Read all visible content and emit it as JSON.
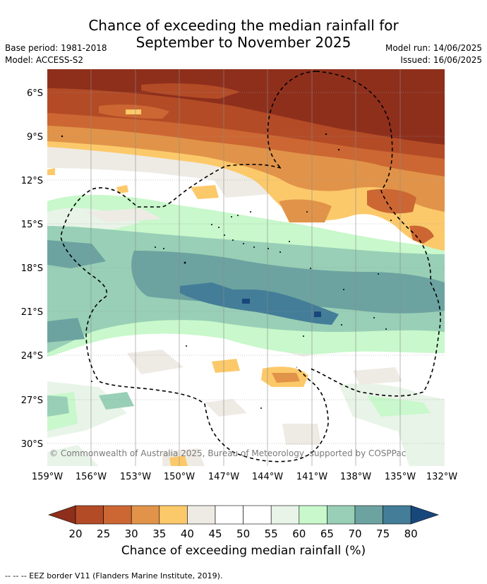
{
  "header": {
    "title_line1": "Chance of exceeding the median rainfall for",
    "title_line2": "September to November 2025",
    "base_period": "Base period: 1981-2018",
    "model": "Model: ACCESS-S2",
    "model_run": "Model run: 14/06/2025",
    "issued": "Issued: 16/06/2025"
  },
  "map": {
    "lat_labels": [
      "6°S",
      "9°S",
      "12°S",
      "15°S",
      "18°S",
      "21°S",
      "24°S",
      "27°S",
      "30°S"
    ],
    "lon_labels": [
      "159°W",
      "156°W",
      "153°W",
      "150°W",
      "147°W",
      "144°W",
      "141°W",
      "138°W",
      "135°W",
      "132°W"
    ],
    "copyright": "© Commonwealth of Australia 2025, Bureau of Meteorology, supported by COSPPac"
  },
  "colorbar": {
    "ticks": [
      "20",
      "25",
      "30",
      "35",
      "40",
      "45",
      "50",
      "55",
      "60",
      "65",
      "70",
      "75",
      "80"
    ],
    "colors": [
      "#8e2f1c",
      "#b34b26",
      "#cc6733",
      "#e19449",
      "#fcc96a",
      "#eeebe5",
      "#ffffff",
      "#ffffff",
      "#e8f4e8",
      "#c8f8cb",
      "#98cfb6",
      "#6ca3a0",
      "#437d98",
      "#18477b"
    ],
    "label": "Chance of exceeding median rainfall (%)"
  },
  "footer": "--  --  -- EEZ border V11 (Flanders Marine Institute, 2019)."
}
